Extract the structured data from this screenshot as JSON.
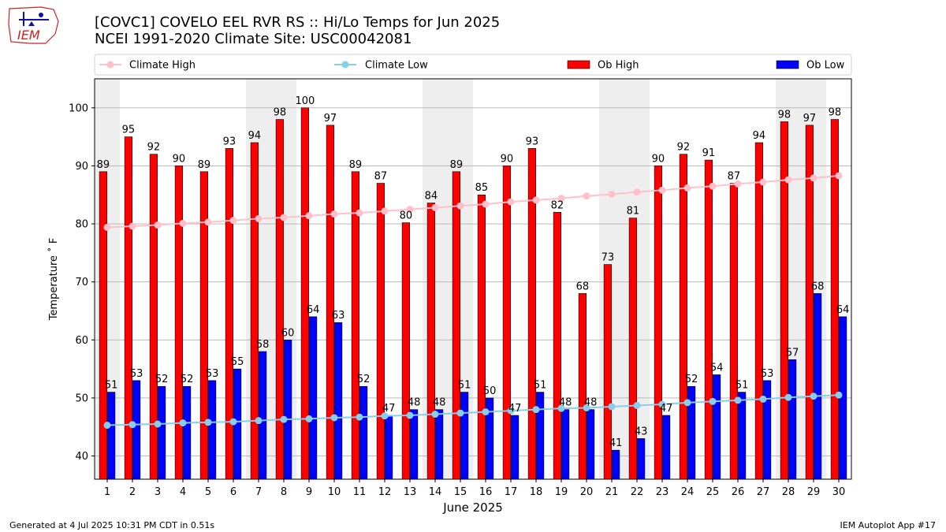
{
  "header": {
    "title_line1": "[COVC1] COVELO EEL RVR RS :: Hi/Lo Temps for Jun 2025",
    "title_line2": "NCEI 1991-2020 Climate Site: USC00042081"
  },
  "logo": {
    "text": "IEM"
  },
  "footer": {
    "generated": "Generated at 4 Jul 2025 10:31 PM CDT in 0.51s",
    "app": "IEM Autoplot App #17"
  },
  "colors": {
    "ob_high": "#ff0000",
    "ob_low": "#0000ff",
    "climate_high": "#ffc0cb",
    "climate_low": "#87ceeb",
    "weekend_band": "#eeeeee",
    "grid": "#b0b0b0"
  },
  "chart_data": {
    "type": "bar",
    "xlabel": "June 2025",
    "ylabel": "Temperature ˚ F",
    "ylim": [
      36,
      105
    ],
    "yticks": [
      40,
      50,
      60,
      70,
      80,
      90,
      100
    ],
    "grid": "horizontal",
    "legend_position": "top",
    "categories": [
      1,
      2,
      3,
      4,
      5,
      6,
      7,
      8,
      9,
      10,
      11,
      12,
      13,
      14,
      15,
      16,
      17,
      18,
      19,
      20,
      21,
      22,
      23,
      24,
      25,
      26,
      27,
      28,
      29,
      30
    ],
    "shaded_days": [
      1,
      7,
      8,
      14,
      15,
      21,
      22,
      28,
      29
    ],
    "series": [
      {
        "name": "Ob High",
        "kind": "bar",
        "values": [
          89,
          95,
          92,
          90,
          89,
          93,
          94,
          98,
          100,
          97,
          89,
          87,
          80,
          84,
          89,
          85,
          90,
          93,
          82,
          68,
          73,
          81,
          90,
          92,
          91,
          87,
          94,
          98,
          97,
          98
        ],
        "bar_tops": [
          89,
          95,
          92,
          90,
          89,
          93,
          94,
          98,
          100,
          97,
          89,
          87,
          80.2,
          83.6,
          89,
          85,
          90,
          93,
          82,
          68,
          73,
          81,
          90,
          92,
          91,
          87,
          94,
          97.6,
          97,
          98
        ]
      },
      {
        "name": "Ob Low",
        "kind": "bar",
        "values": [
          51,
          53,
          52,
          52,
          53,
          55,
          58,
          60,
          64,
          63,
          52,
          47,
          48,
          48,
          51,
          50,
          47,
          51,
          48,
          48,
          41,
          43,
          47,
          52,
          54,
          51,
          53,
          57,
          68,
          64
        ],
        "bar_tops": [
          51,
          53,
          52,
          52,
          53,
          55,
          58,
          60,
          64,
          63,
          52,
          47,
          48,
          48,
          51,
          50,
          47,
          51,
          48,
          48,
          41,
          43,
          47,
          52,
          54,
          51,
          53,
          56.6,
          68,
          64
        ]
      },
      {
        "name": "Climate High",
        "kind": "line",
        "values": [
          79.4,
          79.6,
          79.8,
          80.1,
          80.3,
          80.6,
          80.9,
          81.1,
          81.4,
          81.7,
          81.9,
          82.2,
          82.5,
          82.8,
          83.1,
          83.4,
          83.8,
          84.1,
          84.4,
          84.8,
          85.1,
          85.5,
          85.8,
          86.2,
          86.5,
          86.9,
          87.2,
          87.6,
          87.9,
          88.3
        ]
      },
      {
        "name": "Climate Low",
        "kind": "line",
        "values": [
          45.3,
          45.4,
          45.5,
          45.7,
          45.8,
          45.9,
          46.1,
          46.3,
          46.4,
          46.6,
          46.7,
          46.9,
          47.0,
          47.2,
          47.4,
          47.6,
          47.8,
          48.0,
          48.2,
          48.3,
          48.5,
          48.7,
          48.9,
          49.2,
          49.4,
          49.6,
          49.8,
          50.1,
          50.3,
          50.5
        ]
      }
    ]
  }
}
